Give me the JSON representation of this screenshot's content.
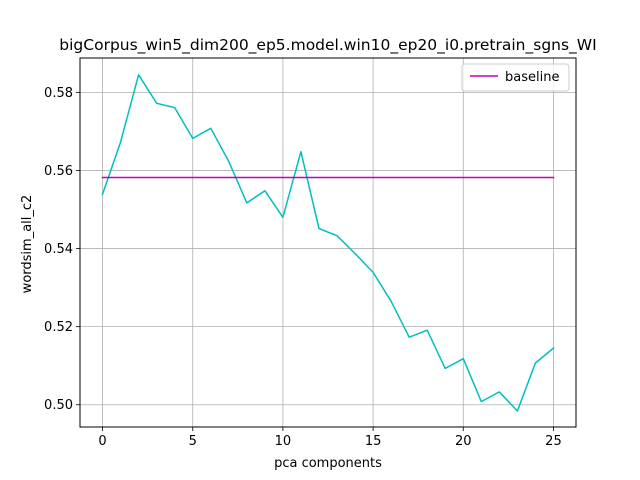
{
  "chart_data": {
    "type": "line",
    "title": "bigCorpus_win5_dim200_ep5.model.win10_ep20_i0.pretrain_sgns_WI",
    "xlabel": "pca components",
    "ylabel": "wordsim_all_c2",
    "xlim": [
      -1.25,
      26.25
    ],
    "ylim": [
      0.4943,
      0.5888
    ],
    "xticks": [
      0,
      5,
      10,
      15,
      20,
      25
    ],
    "yticks": [
      0.5,
      0.52,
      0.54,
      0.56,
      0.58
    ],
    "ytick_labels": [
      "0.50",
      "0.52",
      "0.54",
      "0.56",
      "0.58"
    ],
    "grid": true,
    "legend_position": "top-right",
    "series": [
      {
        "name": "",
        "color": "#00bfbf",
        "x": [
          0,
          1,
          2,
          3,
          4,
          5,
          6,
          7,
          8,
          9,
          10,
          11,
          12,
          13,
          14,
          15,
          16,
          17,
          18,
          19,
          20,
          21,
          22,
          23,
          24,
          25
        ],
        "y": [
          0.5539,
          0.5673,
          0.5845,
          0.5772,
          0.5761,
          0.5682,
          0.5708,
          0.5623,
          0.5517,
          0.5548,
          0.548,
          0.5648,
          0.5451,
          0.5433,
          0.5387,
          0.5339,
          0.5265,
          0.5173,
          0.5191,
          0.5093,
          0.5118,
          0.5008,
          0.5033,
          0.4984,
          0.5107,
          0.5145
        ]
      },
      {
        "name": "baseline",
        "color": "#bf00bf",
        "x": [
          0,
          25
        ],
        "y": [
          0.5582,
          0.5582
        ]
      }
    ]
  }
}
